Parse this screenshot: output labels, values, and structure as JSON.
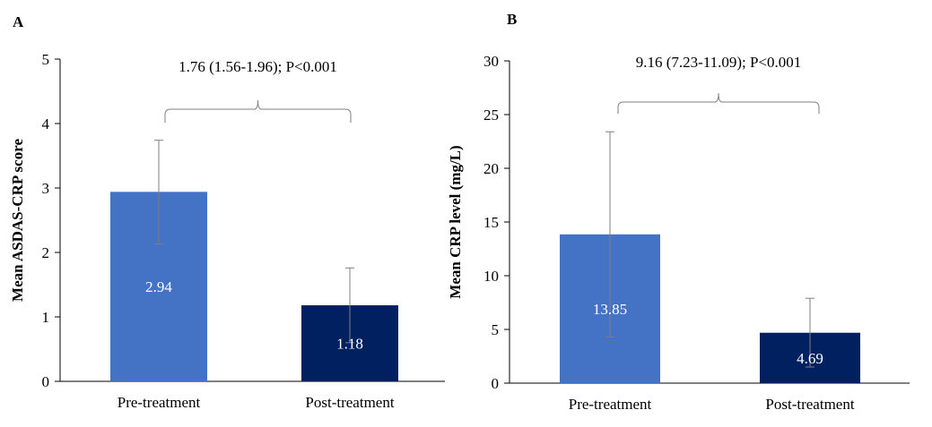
{
  "chart_data": [
    {
      "type": "bar",
      "panel_label": "A",
      "title": "",
      "xlabel": "",
      "ylabel": "Mean ASDAS-CRP score",
      "ylim": [
        0,
        5
      ],
      "yticks": [
        "0",
        "1",
        "2",
        "3",
        "4",
        "5"
      ],
      "categories": [
        "Pre-treatment",
        "Post-treatment"
      ],
      "values": [
        2.94,
        1.18
      ],
      "value_labels": [
        "2.94",
        "1.18"
      ],
      "error_low": [
        2.13,
        0.6
      ],
      "error_high": [
        3.74,
        1.76
      ],
      "colors": [
        "#4472C4",
        "#002060"
      ],
      "annotation": "1.76 (1.56-1.96); P<0.001"
    },
    {
      "type": "bar",
      "panel_label": "B",
      "title": "",
      "xlabel": "",
      "ylabel": "Mean CRP level (mg/L)",
      "ylim": [
        0,
        30
      ],
      "yticks": [
        "0",
        "5",
        "10",
        "15",
        "20",
        "25",
        "30"
      ],
      "categories": [
        "Pre-treatment",
        "Post-treatment"
      ],
      "values": [
        13.85,
        4.69
      ],
      "value_labels": [
        "13.85",
        "4.69"
      ],
      "error_low": [
        4.3,
        1.5
      ],
      "error_high": [
        23.4,
        7.9
      ],
      "colors": [
        "#4472C4",
        "#002060"
      ],
      "annotation": "9.16 (7.23-11.09); P<0.001"
    }
  ]
}
